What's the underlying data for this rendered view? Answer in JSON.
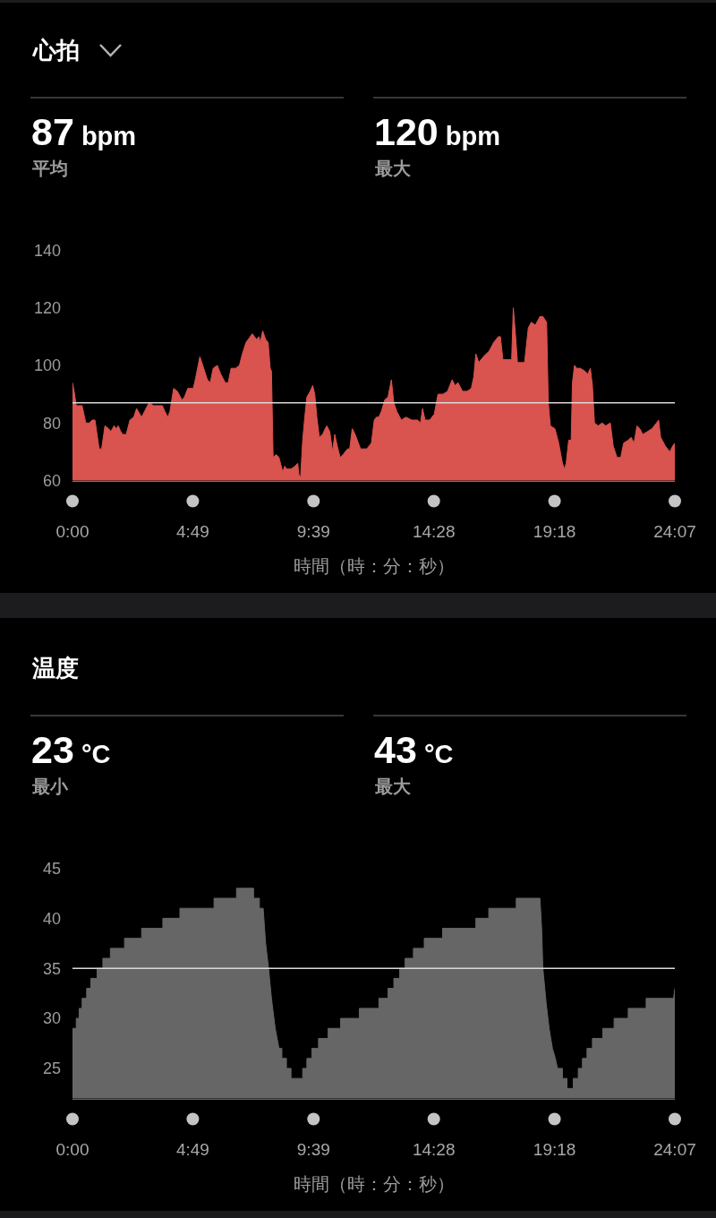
{
  "chart_data": [
    {
      "type": "area",
      "title": "心拍",
      "annotations": [
        "87 bpm",
        "平均",
        "120 bpm",
        "最大"
      ],
      "xlabel": "時間（時：分：秒）",
      "x": [
        0,
        5,
        9,
        23,
        32,
        41,
        47,
        54,
        64,
        70,
        78,
        87,
        92,
        100,
        105,
        110,
        116,
        121,
        129,
        138,
        147,
        154,
        166,
        173,
        184,
        195,
        209,
        216,
        222,
        229,
        234,
        243,
        252,
        263,
        269,
        277,
        290,
        295,
        306,
        313,
        324,
        331,
        338,
        348,
        356,
        367,
        374,
        381,
        392,
        401,
        408,
        417,
        432,
        442,
        448,
        451,
        457,
        464,
        470,
        475,
        478,
        482,
        489,
        496,
        505,
        510,
        514,
        525,
        535,
        541,
        544,
        548,
        553,
        558,
        563,
        571,
        577,
        582,
        587,
        593,
        601,
        607,
        611,
        618,
        625,
        630,
        636,
        643,
        650,
        661,
        666,
        672,
        679,
        692,
        707,
        718,
        725,
        730,
        736,
        742,
        750,
        758,
        766,
        772,
        779,
        790,
        801,
        815,
        829,
        836,
        841,
        847,
        858,
        869,
        878,
        890,
        901,
        912,
        919,
        926,
        937,
        948,
        958,
        964,
        969,
        976,
        987,
        1001,
        1012,
        1023,
        1028,
        1034,
        1048,
        1055,
        1059,
        1064,
        1069,
        1077,
        1086,
        1095,
        1102,
        1112,
        1123,
        1130,
        1139,
        1143,
        1148,
        1159,
        1168,
        1177,
        1182,
        1186,
        1192,
        1198,
        1201,
        1206,
        1211,
        1220,
        1231,
        1238,
        1244,
        1249,
        1254,
        1263,
        1272,
        1281,
        1292,
        1299,
        1308,
        1317,
        1324,
        1335,
        1342,
        1349,
        1356,
        1363,
        1370,
        1381,
        1392,
        1403,
        1408,
        1413,
        1424,
        1435,
        1442,
        1447
      ],
      "series": [
        {
          "color": "#d9534f",
          "values": [
            94,
            90,
            86,
            86,
            80,
            80,
            81,
            81,
            71,
            71,
            79,
            78,
            77,
            79,
            78,
            79,
            77,
            76,
            76,
            81,
            82,
            85,
            82,
            84,
            87,
            86,
            86,
            86,
            84,
            82,
            84,
            92,
            91,
            88,
            89,
            92,
            92,
            95,
            103,
            100,
            95,
            94,
            99,
            100,
            97,
            94,
            94,
            99,
            99,
            100,
            104,
            108,
            111,
            109,
            110,
            108,
            112,
            109,
            108,
            99,
            98,
            68,
            69,
            68,
            63,
            65,
            64,
            64,
            65,
            66,
            62,
            61,
            74,
            82,
            89,
            91,
            93,
            90,
            82,
            75,
            76,
            78,
            79,
            77,
            70,
            76,
            72,
            68,
            69,
            71,
            71,
            78,
            76,
            71,
            71,
            73,
            81,
            82,
            82,
            84,
            88,
            89,
            95,
            87,
            84,
            81,
            82,
            81,
            81,
            80,
            85,
            81,
            81,
            83,
            90,
            90,
            91,
            95,
            93,
            94,
            91,
            91,
            92,
            96,
            104,
            101,
            103,
            105,
            108,
            110,
            110,
            102,
            102,
            102,
            120,
            111,
            101,
            101,
            101,
            113,
            115,
            114,
            117,
            117,
            115,
            87,
            79,
            78,
            73,
            66,
            64,
            66,
            74,
            74,
            94,
            100,
            99,
            99,
            98,
            97,
            99,
            93,
            80,
            79,
            80,
            79,
            80,
            72,
            68,
            68,
            73,
            74,
            75,
            73,
            79,
            78,
            76,
            77,
            78,
            80,
            81,
            75,
            72,
            70,
            72,
            73
          ]
        }
      ],
      "xlim": [
        0,
        1447
      ],
      "xticks": [
        {
          "value": 0,
          "label": "0:00"
        },
        {
          "value": 289,
          "label": "4:49"
        },
        {
          "value": 579,
          "label": "9:39"
        },
        {
          "value": 868,
          "label": "14:28"
        },
        {
          "value": 1158,
          "label": "19:18"
        },
        {
          "value": 1447,
          "label": "24:07"
        }
      ],
      "ylim": [
        60,
        140
      ],
      "yticks": [
        60,
        80,
        100,
        120,
        140
      ],
      "ref_lines": [
        {
          "axis": "y",
          "value": 87,
          "color": "#d9d9d9"
        }
      ]
    },
    {
      "type": "area",
      "title": "温度",
      "annotations": [
        "23 °C",
        "最小",
        "43 °C",
        "最大"
      ],
      "xlabel": "時間（時：分：秒）",
      "x": [
        0,
        9,
        9,
        16,
        16,
        23,
        23,
        34,
        34,
        44,
        44,
        59,
        59,
        73,
        73,
        91,
        91,
        125,
        125,
        166,
        166,
        217,
        217,
        258,
        258,
        340,
        340,
        394,
        394,
        435,
        435,
        449,
        449,
        458,
        464,
        471,
        478,
        487,
        496,
        503,
        503,
        514,
        514,
        525,
        525,
        553,
        553,
        563,
        563,
        575,
        575,
        591,
        591,
        614,
        614,
        644,
        644,
        689,
        689,
        736,
        736,
        758,
        758,
        772,
        772,
        786,
        786,
        799,
        799,
        819,
        819,
        845,
        845,
        889,
        889,
        969,
        969,
        1000,
        1000,
        1066,
        1066,
        1123,
        1127,
        1130,
        1138,
        1145,
        1153,
        1160,
        1165,
        1177,
        1177,
        1188,
        1188,
        1203,
        1203,
        1215,
        1215,
        1225,
        1225,
        1236,
        1236,
        1249,
        1249,
        1274,
        1274,
        1301,
        1301,
        1335,
        1335,
        1378,
        1378,
        1444,
        1447
      ],
      "series": [
        {
          "color": "#666666",
          "values": [
            29,
            29,
            30,
            30,
            31,
            31,
            32,
            32,
            33,
            33,
            34,
            34,
            35,
            35,
            36,
            36,
            37,
            37,
            38,
            38,
            39,
            39,
            40,
            40,
            41,
            41,
            42,
            42,
            43,
            43,
            42,
            42,
            41,
            41,
            37.5,
            35,
            32,
            29,
            27,
            27,
            26,
            26,
            25,
            25,
            24,
            24,
            25,
            25,
            26,
            26,
            27,
            27,
            28,
            28,
            29,
            29,
            30,
            30,
            31,
            31,
            32,
            32,
            33,
            33,
            34,
            34,
            35,
            35,
            36,
            36,
            37,
            37,
            38,
            38,
            39,
            39,
            40,
            40,
            41,
            41,
            42,
            42,
            39,
            35,
            31.5,
            29,
            27,
            26,
            25,
            25,
            24,
            24,
            23,
            23,
            24,
            24,
            25,
            25,
            26,
            26,
            27,
            27,
            28,
            28,
            29,
            29,
            30,
            30,
            31,
            31,
            32,
            32,
            33
          ]
        }
      ],
      "xlim": [
        0,
        1447
      ],
      "xticks": [
        {
          "value": 0,
          "label": "0:00"
        },
        {
          "value": 289,
          "label": "4:49"
        },
        {
          "value": 579,
          "label": "9:39"
        },
        {
          "value": 868,
          "label": "14:28"
        },
        {
          "value": 1158,
          "label": "19:18"
        },
        {
          "value": 1447,
          "label": "24:07"
        }
      ],
      "ylim": [
        22,
        45
      ],
      "yticks": [
        25,
        30,
        35,
        40,
        45
      ],
      "ref_lines": [
        {
          "axis": "y",
          "value": 35,
          "color": "#d9d9d9"
        }
      ]
    }
  ]
}
